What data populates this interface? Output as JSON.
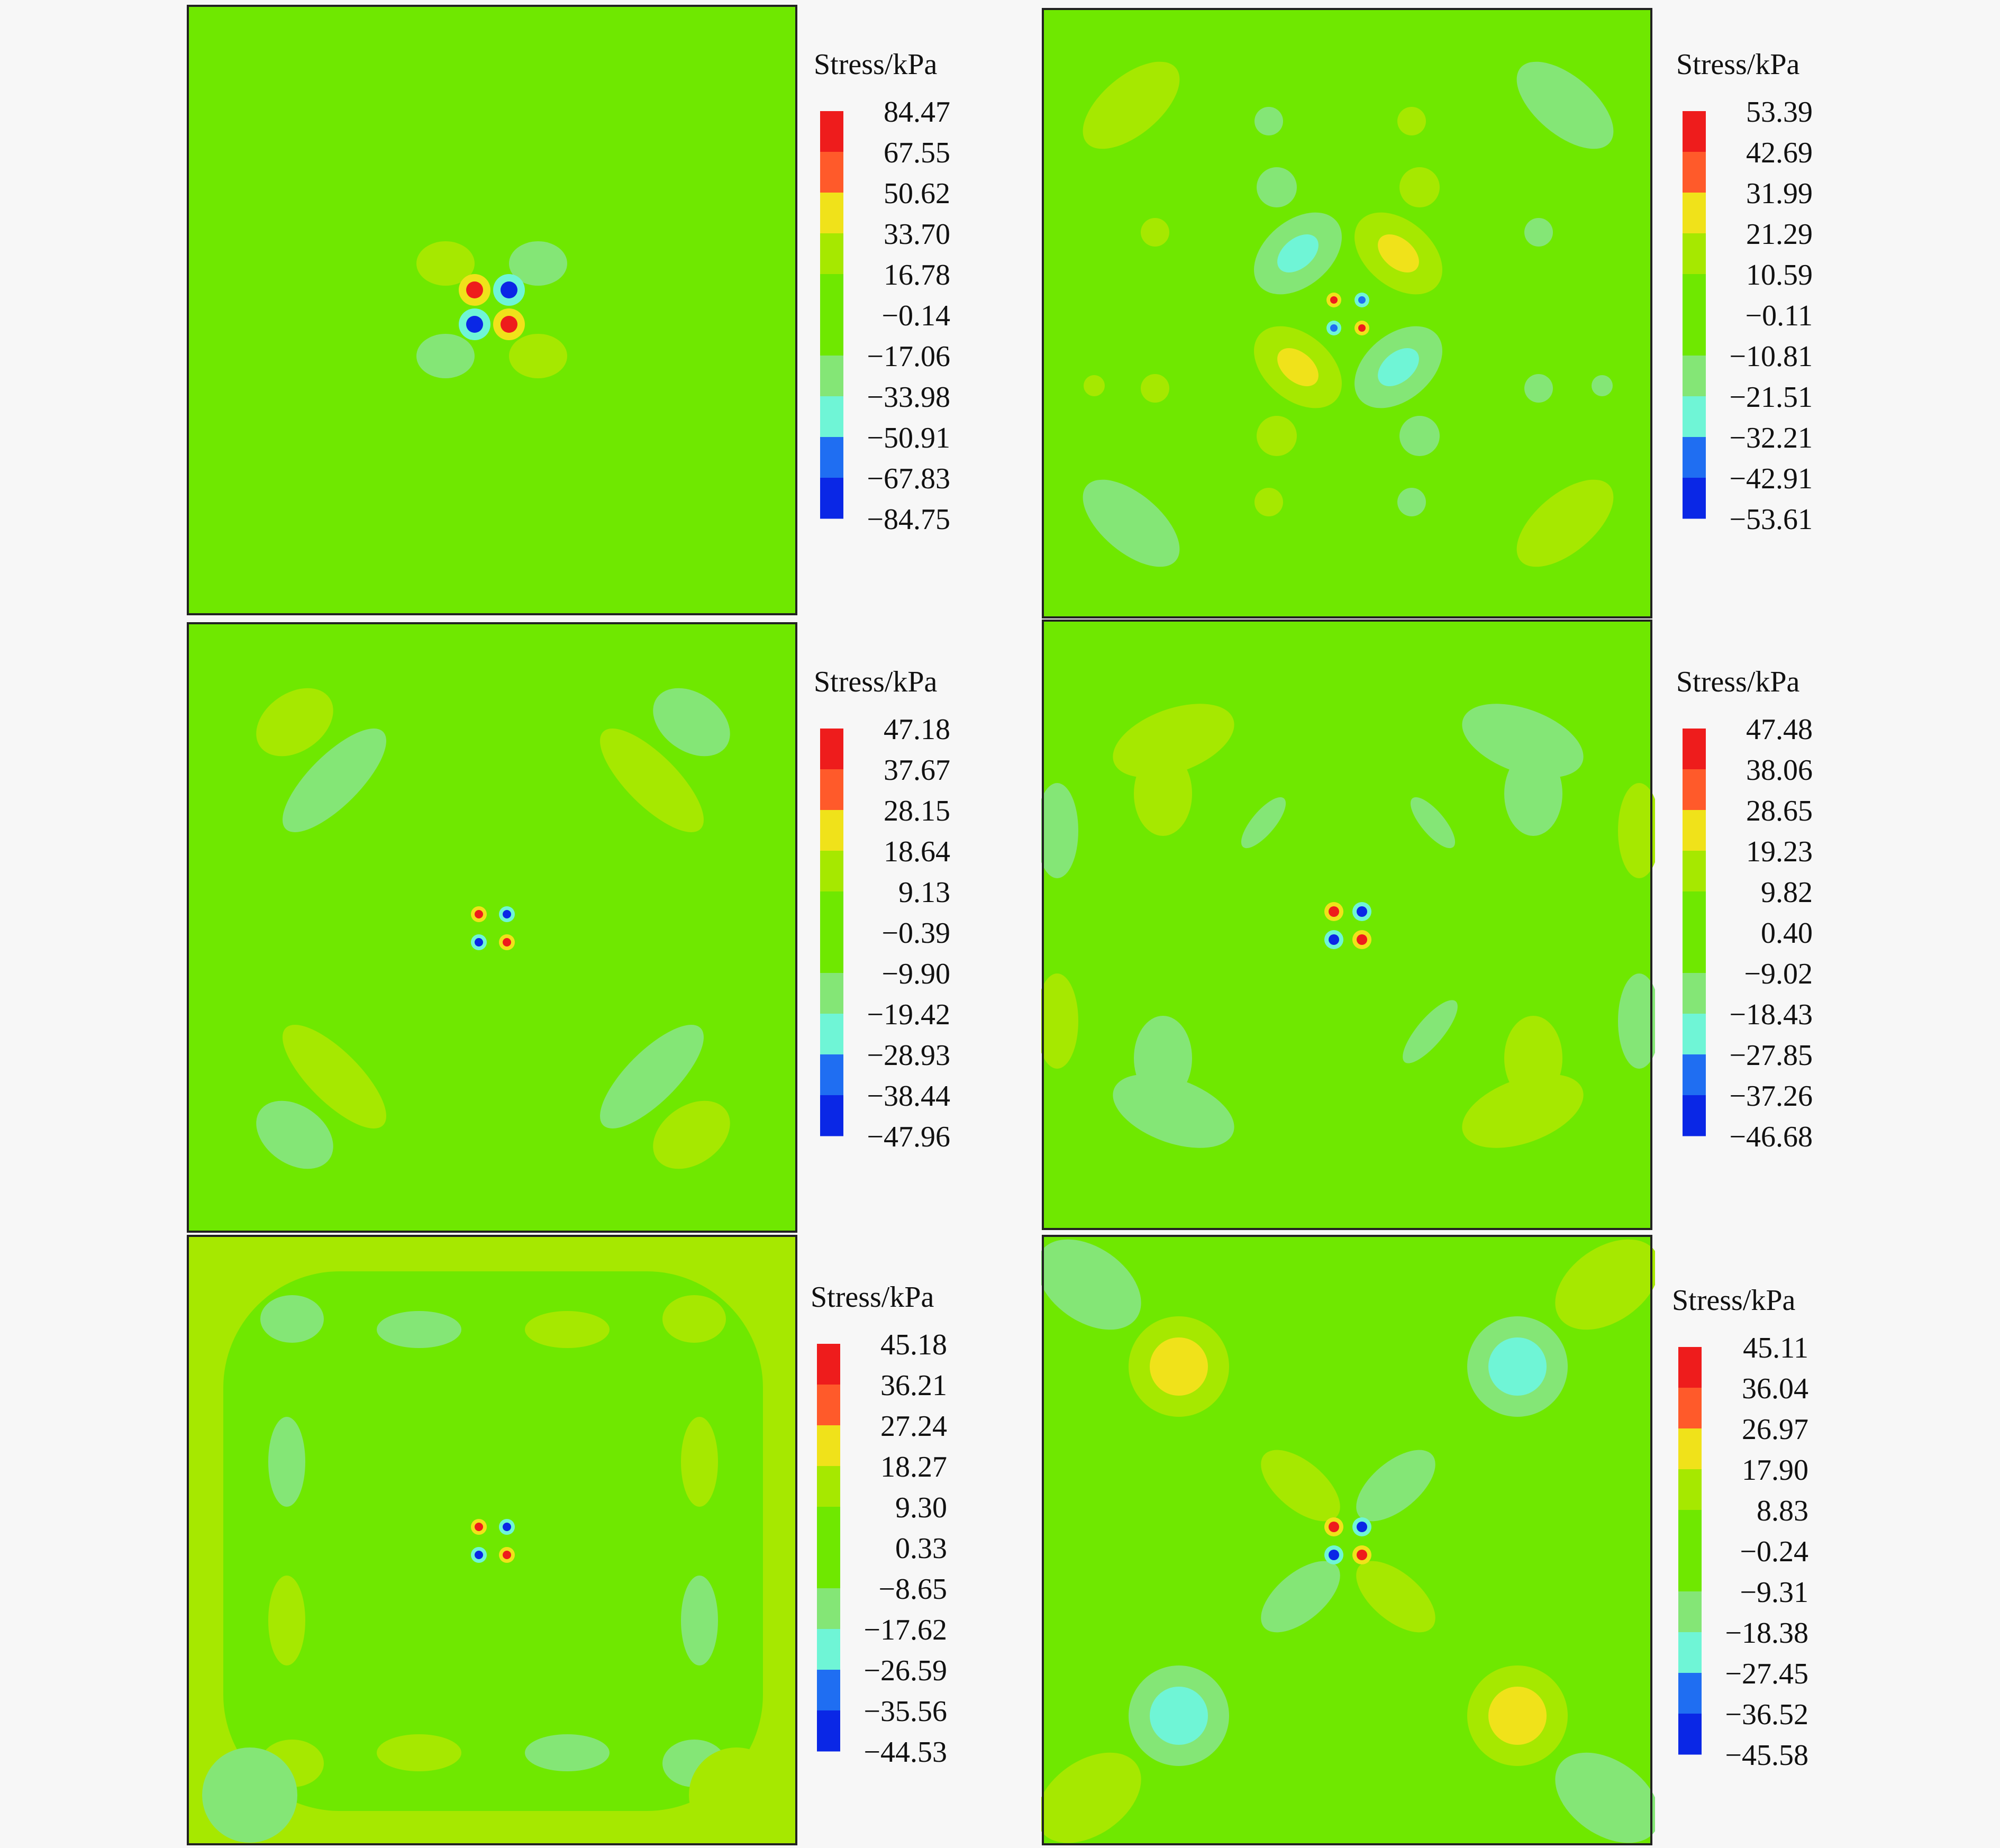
{
  "colors": {
    "background": "#f7f7f7",
    "frame": "#222222",
    "scale": [
      "#0a27e6",
      "#1f6ef2",
      "#6ff5d6",
      "#84e676",
      "#6fe800",
      "#a6e800",
      "#f0e21a",
      "#ff5a2a",
      "#ee1c1c"
    ]
  },
  "panels": [
    {
      "legend_title": "Stress/kPa",
      "ticks": [
        "84.47",
        "67.55",
        "50.62",
        "33.70",
        "16.78",
        "−0.14",
        "−17.06",
        "−33.98",
        "−50.91",
        "−67.83",
        "−84.75"
      ]
    },
    {
      "legend_title": "Stress/kPa",
      "ticks": [
        "53.39",
        "42.69",
        "31.99",
        "21.29",
        "10.59",
        "−0.11",
        "−10.81",
        "−21.51",
        "−32.21",
        "−42.91",
        "−53.61"
      ]
    },
    {
      "legend_title": "Stress/kPa",
      "ticks": [
        "47.18",
        "37.67",
        "28.15",
        "18.64",
        "9.13",
        "−0.39",
        "−9.90",
        "−19.42",
        "−28.93",
        "−38.44",
        "−47.96"
      ]
    },
    {
      "legend_title": "Stress/kPa",
      "ticks": [
        "47.48",
        "38.06",
        "28.65",
        "19.23",
        "9.82",
        "0.40",
        "−9.02",
        "−18.43",
        "−27.85",
        "−37.26",
        "−46.68"
      ]
    },
    {
      "legend_title": "Stress/kPa",
      "ticks": [
        "45.18",
        "36.21",
        "27.24",
        "18.27",
        "9.30",
        "0.33",
        "−8.65",
        "−17.62",
        "−26.59",
        "−35.56",
        "−44.53"
      ]
    },
    {
      "legend_title": "Stress/kPa",
      "ticks": [
        "45.11",
        "36.04",
        "26.97",
        "17.90",
        "8.83",
        "−0.24",
        "−9.31",
        "−18.38",
        "−27.45",
        "−36.52",
        "−45.58"
      ]
    }
  ]
}
